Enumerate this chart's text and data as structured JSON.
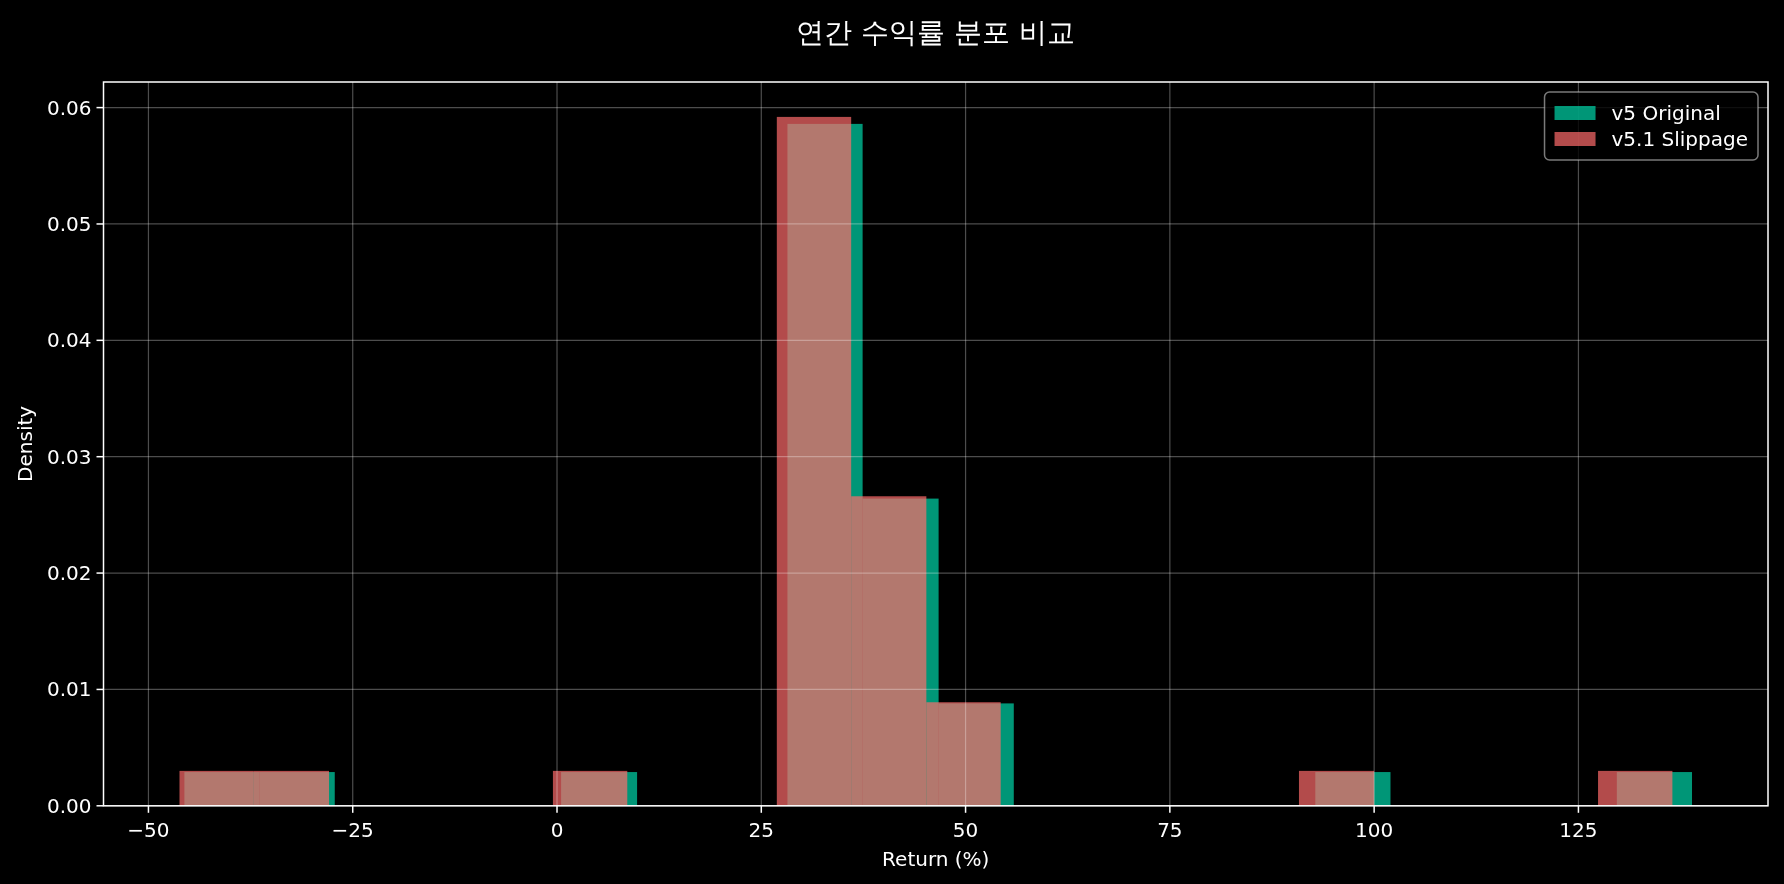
{
  "chart_data": {
    "type": "histogram",
    "title": "연간 수익률 분포 비교",
    "xlabel": "Return (%)",
    "ylabel": "Density",
    "xlim": [
      -55.5,
      148.2
    ],
    "ylim": [
      0,
      0.0622
    ],
    "xticks": [
      {
        "value": -50,
        "label": "−50"
      },
      {
        "value": -25,
        "label": "−25"
      },
      0,
      25,
      50,
      75,
      100,
      125
    ],
    "yticks": [
      {
        "value": 0,
        "label": "0.00"
      },
      {
        "value": 0.01,
        "label": "0.01"
      },
      {
        "value": 0.02,
        "label": "0.02"
      },
      {
        "value": 0.03,
        "label": "0.03"
      },
      {
        "value": 0.04,
        "label": "0.04"
      },
      {
        "value": 0.05,
        "label": "0.05"
      },
      {
        "value": 0.06,
        "label": "0.06"
      }
    ],
    "grid": true,
    "legend": "top right",
    "bins": [
      -45.6,
      -36.4,
      -27.2,
      0.5,
      9.8,
      28.2,
      37.4,
      46.7,
      55.9,
      92.8,
      102.0,
      129.7,
      138.9
    ],
    "series": [
      {
        "name": "v5 Original",
        "color": "#00d6aa",
        "values": [
          0.0029,
          0.0029,
          0,
          0.0029,
          0,
          0.0586,
          0.0264,
          0.0088,
          0,
          0.0029,
          0,
          0.0029
        ]
      },
      {
        "name": "v5.1 Slippage",
        "color": "#ff6b6b",
        "bins": [
          -46.2,
          -37.1,
          -27.9,
          -0.5,
          8.6,
          26.9,
          36.0,
          45.2,
          54.3,
          90.8,
          100.0,
          127.4,
          136.5
        ],
        "values": [
          0.003,
          0.003,
          0,
          0.003,
          0,
          0.0592,
          0.0266,
          0.0089,
          0,
          0.003,
          0,
          0.003
        ]
      }
    ]
  }
}
